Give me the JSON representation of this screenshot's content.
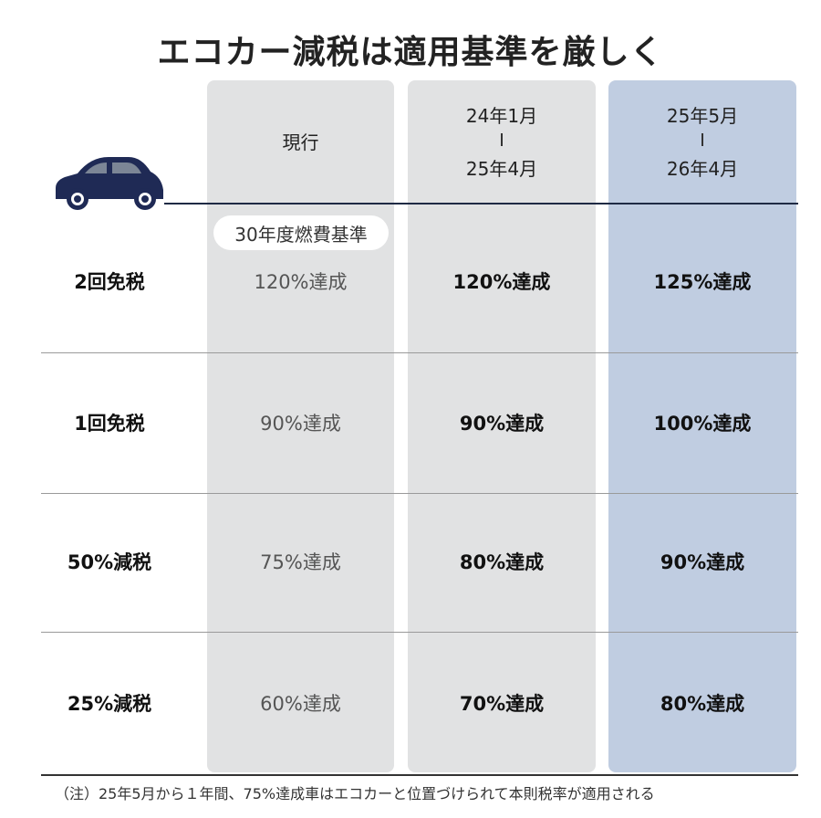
{
  "title": "エコカー減税は適用基準を厳しく",
  "columns": [
    {
      "lines": [
        "現行"
      ]
    },
    {
      "from": "24年1月",
      "to": "25年4月"
    },
    {
      "from": "25年5月",
      "to": "26年4月"
    }
  ],
  "standard_badge": "30年度燃費基準",
  "rows": [
    {
      "label": "2回免税",
      "values": [
        "120%達成",
        "120%達成",
        "125%達成"
      ]
    },
    {
      "label": "1回免税",
      "values": [
        "90%達成",
        "90%達成",
        "100%達成"
      ]
    },
    {
      "label": "50%減税",
      "values": [
        "75%達成",
        "80%達成",
        "90%達成"
      ]
    },
    {
      "label": "25%減税",
      "values": [
        "60%達成",
        "70%達成",
        "80%達成"
      ]
    }
  ],
  "note": "（注）25年5月から１年間、75%達成車はエコカーと位置づけられて本則税率が適用される",
  "colors": {
    "car": "#1f2a55",
    "highlight_column": "#c0cde1",
    "column": "#e1e2e3"
  }
}
